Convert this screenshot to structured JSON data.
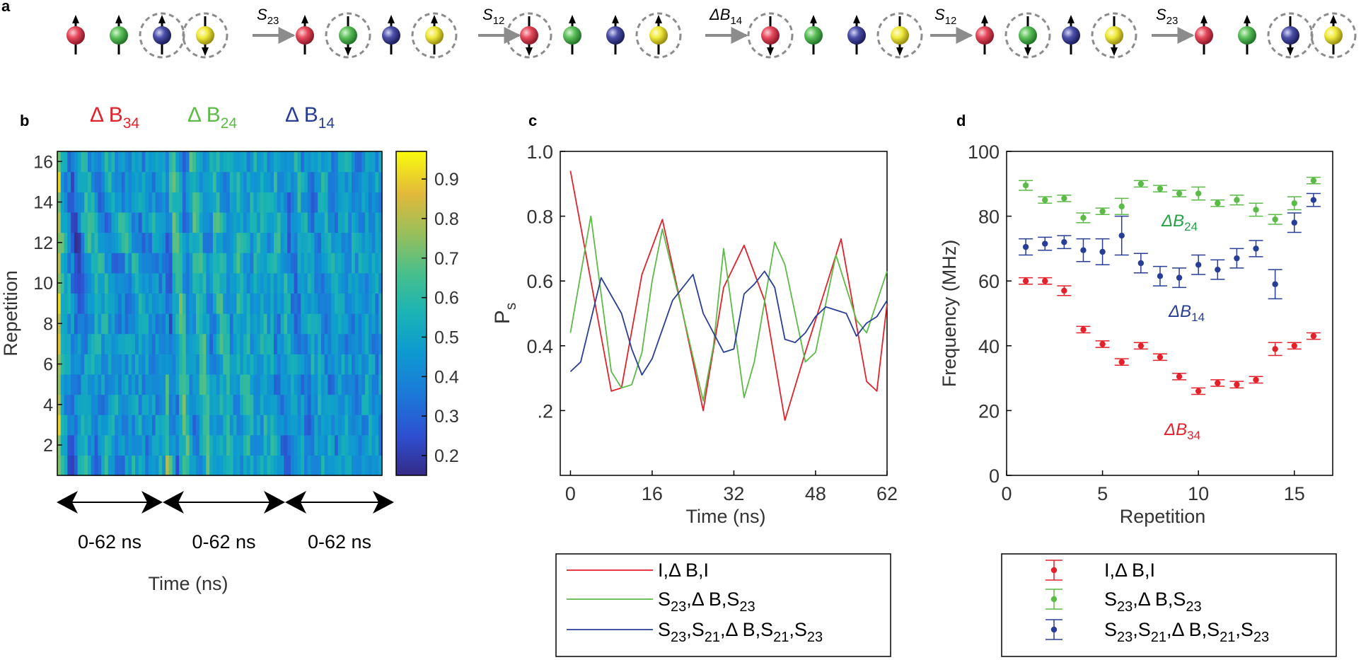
{
  "panel_labels": {
    "a": "a",
    "b": "b",
    "c": "c",
    "d": "d"
  },
  "colors": {
    "red": "#e3212b",
    "green": "#5cba47",
    "blue": "#283e96",
    "yellow": "#f2e227",
    "red_ball": "#e64a5c",
    "green_ball": "#5cc05a",
    "blue_ball": "#4b4fa8",
    "yellow_ball": "#f0ea3c",
    "dark_green_text": "#23a243",
    "arrow_gray": "#8c8c8c"
  },
  "panel_a": {
    "operations": [
      {
        "base": "S",
        "sub": "23"
      },
      {
        "base": "S",
        "sub": "12"
      },
      {
        "base": "ΔB",
        "sub": "14"
      },
      {
        "base": "S",
        "sub": "12"
      },
      {
        "base": "S",
        "sub": "23"
      }
    ],
    "groups": [
      {
        "spins": [
          "up",
          "up",
          "up",
          "down"
        ],
        "circled": [
          false,
          false,
          true,
          true
        ]
      },
      {
        "spins": [
          "up",
          "down",
          "up",
          "up"
        ],
        "circled": [
          false,
          true,
          false,
          true
        ]
      },
      {
        "spins": [
          "down",
          "up",
          "up",
          "up"
        ],
        "circled": [
          true,
          false,
          false,
          true
        ]
      },
      {
        "spins": [
          "down",
          "up",
          "up",
          "down"
        ],
        "circled": [
          true,
          false,
          false,
          true
        ]
      },
      {
        "spins": [
          "up",
          "down",
          "up",
          "down"
        ],
        "circled": [
          false,
          true,
          false,
          true
        ]
      },
      {
        "spins": [
          "up",
          "up",
          "down",
          "up"
        ],
        "circled": [
          false,
          false,
          true,
          true
        ]
      }
    ]
  },
  "panel_b": {
    "header": [
      {
        "base": "Δ B",
        "sub": "34",
        "color": "red"
      },
      {
        "base": "Δ B",
        "sub": "24",
        "color": "green"
      },
      {
        "base": "Δ B",
        "sub": "14",
        "color": "blue"
      }
    ],
    "ylabel": "Repetition",
    "yticks": [
      "2",
      "4",
      "6",
      "8",
      "10",
      "12",
      "14",
      "16"
    ],
    "colorbar_ticks": [
      "0.2",
      "0.3",
      "0.4",
      "0.5",
      "0.6",
      "0.7",
      "0.8",
      "0.9"
    ],
    "span_labels": [
      "0-62 ns",
      "0-62 ns",
      "0-62 ns"
    ],
    "xlabel": "Time (ns)"
  },
  "chart_data": [
    {
      "type": "heatmap",
      "panel": "b",
      "title": "",
      "xlabel": "Time (ns)",
      "ylabel": "Repetition",
      "rows": 16,
      "columns": 96,
      "segments": [
        "0-62 ns",
        "0-62 ns",
        "0-62 ns"
      ],
      "color_range": [
        0.15,
        0.97
      ],
      "colorbar_ticks": [
        0.2,
        0.3,
        0.4,
        0.5,
        0.6,
        0.7,
        0.8,
        0.9
      ],
      "colormap": "parula"
    },
    {
      "type": "line",
      "panel": "c",
      "xlabel": "Time (ns)",
      "ylabel": "P",
      "ylabel_sub": "s",
      "xlim": [
        -2,
        62
      ],
      "ylim": [
        0.0,
        1.0
      ],
      "xticks": [
        0,
        16,
        32,
        48,
        62
      ],
      "xtick_labels": [
        "0",
        "16",
        "32",
        "48",
        "62"
      ],
      "yticks": [
        0.2,
        0.4,
        0.6,
        0.8,
        1.0
      ],
      "ytick_labels": [
        ".2",
        "0.4",
        "0.6",
        "0.8",
        "1.0"
      ],
      "legend": [
        {
          "label": "I,Δ B,I",
          "color": "red",
          "parts": [
            {
              "t": "I,Δ B,I"
            }
          ]
        },
        {
          "label": "S23,Δ B,S23",
          "color": "green",
          "parts": [
            {
              "t": "S"
            },
            {
              "s": "23"
            },
            {
              "t": ",Δ B,S"
            },
            {
              "s": "23"
            }
          ]
        },
        {
          "label": "S23,S21,Δ B,S21,S23",
          "color": "blue",
          "parts": [
            {
              "t": "S"
            },
            {
              "s": "23"
            },
            {
              "t": ",S"
            },
            {
              "s": "21"
            },
            {
              "t": ",Δ B,S"
            },
            {
              "s": "21"
            },
            {
              "t": ",S"
            },
            {
              "s": "23"
            }
          ]
        }
      ],
      "series": [
        {
          "name": "I,Δ B,I",
          "color": "red",
          "x": [
            0,
            8,
            10,
            14,
            18,
            22,
            26,
            30,
            34,
            38,
            42,
            46,
            50,
            53,
            58,
            60,
            62
          ],
          "y": [
            0.94,
            0.26,
            0.27,
            0.62,
            0.79,
            0.5,
            0.2,
            0.58,
            0.71,
            0.54,
            0.17,
            0.38,
            0.58,
            0.73,
            0.29,
            0.26,
            0.53
          ]
        },
        {
          "name": "S23,Δ B,S23",
          "color": "green",
          "x": [
            0,
            4,
            8,
            10,
            12,
            14,
            16,
            18,
            22,
            26,
            28,
            30,
            34,
            36,
            40,
            42,
            46,
            48,
            52,
            56,
            58,
            62
          ],
          "y": [
            0.44,
            0.8,
            0.32,
            0.27,
            0.28,
            0.38,
            0.6,
            0.76,
            0.5,
            0.23,
            0.4,
            0.7,
            0.24,
            0.35,
            0.72,
            0.65,
            0.35,
            0.38,
            0.68,
            0.48,
            0.44,
            0.63
          ]
        },
        {
          "name": "S23,S21,Δ B,S21,S23",
          "color": "blue",
          "x": [
            0,
            2,
            6,
            10,
            12,
            14,
            16,
            20,
            24,
            26,
            30,
            32,
            34,
            36,
            38,
            40,
            42,
            44,
            46,
            48,
            50,
            52,
            54,
            56,
            58,
            60,
            62
          ],
          "y": [
            0.32,
            0.35,
            0.61,
            0.5,
            0.39,
            0.31,
            0.36,
            0.54,
            0.62,
            0.5,
            0.38,
            0.39,
            0.56,
            0.59,
            0.63,
            0.58,
            0.42,
            0.41,
            0.44,
            0.49,
            0.52,
            0.51,
            0.5,
            0.43,
            0.47,
            0.49,
            0.54
          ]
        }
      ]
    },
    {
      "type": "scatter",
      "panel": "d",
      "xlabel": "Repetition",
      "ylabel": "Frequency (MHz)",
      "xlim": [
        0,
        17
      ],
      "ylim": [
        0,
        100
      ],
      "xticks": [
        0,
        5,
        10,
        15
      ],
      "xtick_labels": [
        "0",
        "5",
        "10",
        "15"
      ],
      "yticks": [
        0,
        20,
        40,
        60,
        80,
        100
      ],
      "ytick_labels": [
        "0",
        "20",
        "40",
        "60",
        "80",
        "100"
      ],
      "annotations": [
        {
          "base": "ΔB",
          "sub": "24",
          "color": "dark_green_text"
        },
        {
          "base": "ΔB",
          "sub": "14",
          "color": "blue"
        },
        {
          "base": "ΔB",
          "sub": "34",
          "color": "red"
        }
      ],
      "legend": [
        {
          "label": "I,Δ B,I",
          "color": "red",
          "parts": [
            {
              "t": "I,Δ B,I"
            }
          ]
        },
        {
          "label": "S23,Δ B,S23",
          "color": "green",
          "parts": [
            {
              "t": "S"
            },
            {
              "s": "23"
            },
            {
              "t": ",Δ B,S"
            },
            {
              "s": "23"
            }
          ]
        },
        {
          "label": "S23,S21,Δ B,S21,S23",
          "color": "blue",
          "parts": [
            {
              "t": "S"
            },
            {
              "s": "23"
            },
            {
              "t": ",S"
            },
            {
              "s": "21"
            },
            {
              "t": ",Δ B,S"
            },
            {
              "s": "21"
            },
            {
              "t": ",S"
            },
            {
              "s": "23"
            }
          ]
        }
      ],
      "series": [
        {
          "name": "I,Δ B,I",
          "color": "red",
          "x": [
            1,
            2,
            3,
            4,
            5,
            6,
            7,
            8,
            9,
            10,
            11,
            12,
            13,
            14,
            15,
            16
          ],
          "y": [
            60,
            60,
            57,
            45,
            40.5,
            35,
            40,
            36.5,
            30.5,
            26,
            28.5,
            28,
            29.5,
            39,
            40,
            43
          ],
          "err": [
            1,
            1,
            1.5,
            1,
            1,
            1,
            1,
            1,
            1,
            1,
            1,
            1,
            1,
            2,
            1,
            1
          ]
        },
        {
          "name": "S23,Δ B,S23",
          "color": "green",
          "x": [
            1,
            2,
            3,
            4,
            5,
            6,
            7,
            8,
            9,
            10,
            11,
            12,
            13,
            14,
            15,
            16
          ],
          "y": [
            89.5,
            85,
            85.5,
            79.5,
            81.5,
            83,
            90,
            88.5,
            87,
            87,
            84,
            85,
            82,
            79,
            84,
            91
          ],
          "err": [
            1.5,
            1,
            1,
            1.5,
            1,
            2.5,
            1,
            1,
            1,
            2,
            1,
            1.5,
            2,
            1.5,
            2,
            1
          ]
        },
        {
          "name": "S23,S21,Δ B,S21,S23",
          "color": "blue",
          "x": [
            1,
            2,
            3,
            4,
            5,
            6,
            7,
            8,
            9,
            10,
            11,
            12,
            13,
            14,
            15,
            16
          ],
          "y": [
            70.5,
            71.5,
            72,
            69.5,
            69,
            74,
            65.5,
            61.5,
            61,
            65,
            63.5,
            67,
            70,
            59,
            78,
            85
          ],
          "err": [
            2.5,
            2,
            2,
            3.5,
            4,
            6,
            3,
            3,
            3,
            3,
            3,
            3,
            2.5,
            4.5,
            3,
            2
          ]
        }
      ]
    }
  ]
}
